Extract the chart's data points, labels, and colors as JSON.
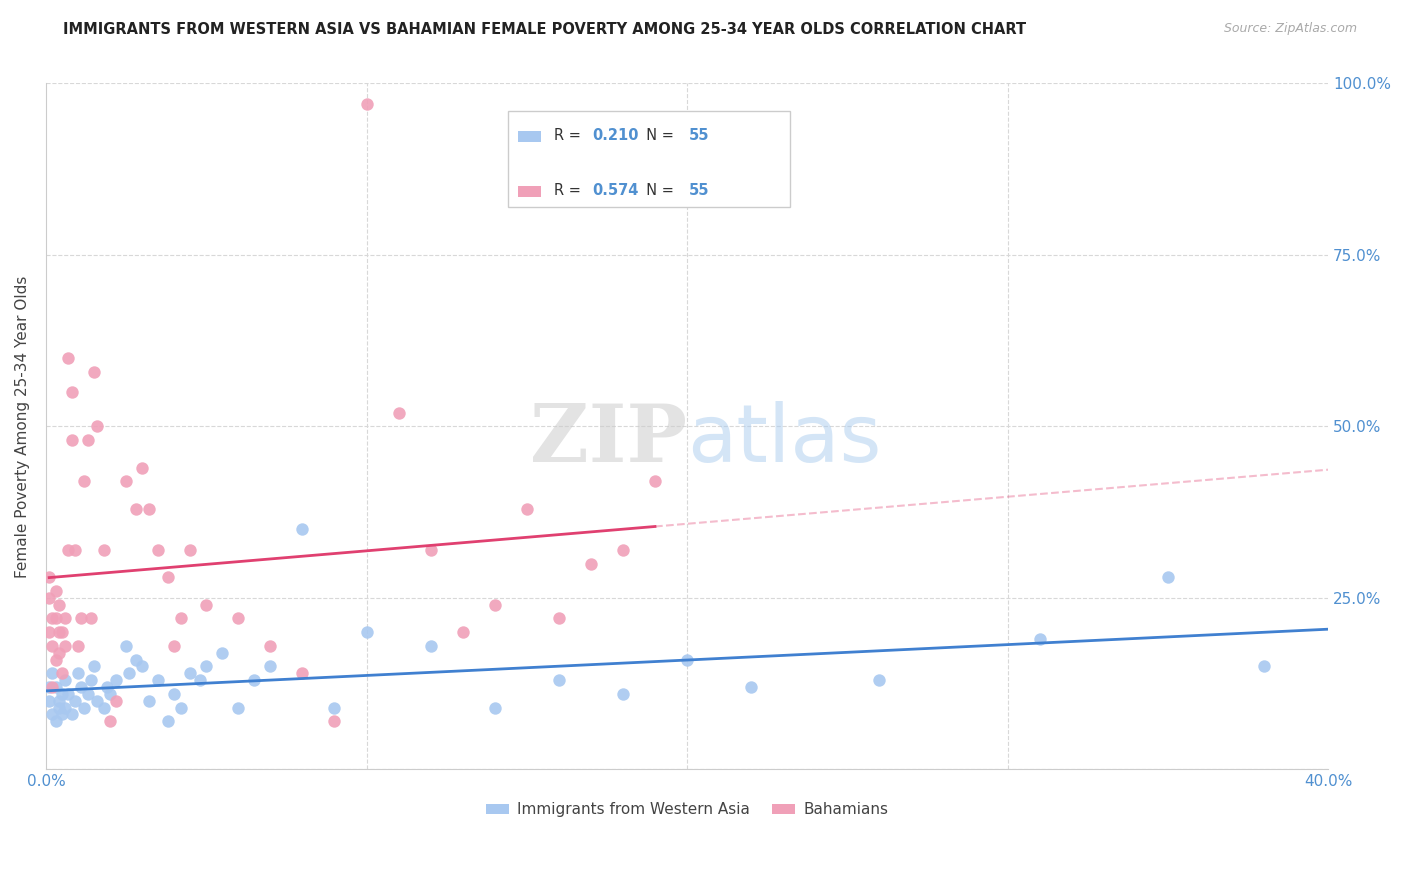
{
  "title": "IMMIGRANTS FROM WESTERN ASIA VS BAHAMIAN FEMALE POVERTY AMONG 25-34 YEAR OLDS CORRELATION CHART",
  "source": "Source: ZipAtlas.com",
  "ylabel": "Female Poverty Among 25-34 Year Olds",
  "xlim": [
    0.0,
    0.4
  ],
  "ylim": [
    0.0,
    1.0
  ],
  "blue_color": "#a8c8f0",
  "pink_color": "#f0a0b8",
  "blue_line_color": "#4080d0",
  "pink_line_color": "#e04070",
  "grid_color": "#d8d8d8",
  "legend_r_blue": "0.210",
  "legend_n_blue": "55",
  "legend_r_pink": "0.574",
  "legend_n_pink": "55",
  "legend_label_blue": "Immigrants from Western Asia",
  "legend_label_pink": "Bahamians",
  "blue_x": [
    0.001,
    0.001,
    0.002,
    0.002,
    0.003,
    0.003,
    0.004,
    0.004,
    0.005,
    0.005,
    0.006,
    0.006,
    0.007,
    0.008,
    0.009,
    0.01,
    0.011,
    0.012,
    0.013,
    0.014,
    0.015,
    0.016,
    0.018,
    0.019,
    0.02,
    0.022,
    0.025,
    0.026,
    0.028,
    0.03,
    0.032,
    0.035,
    0.038,
    0.04,
    0.042,
    0.045,
    0.048,
    0.05,
    0.055,
    0.06,
    0.065,
    0.07,
    0.08,
    0.09,
    0.1,
    0.12,
    0.14,
    0.16,
    0.18,
    0.2,
    0.22,
    0.26,
    0.31,
    0.35,
    0.38
  ],
  "blue_y": [
    0.1,
    0.12,
    0.08,
    0.14,
    0.07,
    0.12,
    0.1,
    0.09,
    0.11,
    0.08,
    0.09,
    0.13,
    0.11,
    0.08,
    0.1,
    0.14,
    0.12,
    0.09,
    0.11,
    0.13,
    0.15,
    0.1,
    0.09,
    0.12,
    0.11,
    0.13,
    0.18,
    0.14,
    0.16,
    0.15,
    0.1,
    0.13,
    0.07,
    0.11,
    0.09,
    0.14,
    0.13,
    0.15,
    0.17,
    0.09,
    0.13,
    0.15,
    0.35,
    0.09,
    0.2,
    0.18,
    0.09,
    0.13,
    0.11,
    0.16,
    0.12,
    0.13,
    0.19,
    0.28,
    0.15
  ],
  "pink_x": [
    0.001,
    0.001,
    0.001,
    0.002,
    0.002,
    0.002,
    0.003,
    0.003,
    0.003,
    0.004,
    0.004,
    0.004,
    0.005,
    0.005,
    0.006,
    0.006,
    0.007,
    0.007,
    0.008,
    0.008,
    0.009,
    0.01,
    0.011,
    0.012,
    0.013,
    0.014,
    0.015,
    0.016,
    0.018,
    0.02,
    0.022,
    0.025,
    0.028,
    0.03,
    0.032,
    0.035,
    0.038,
    0.04,
    0.042,
    0.045,
    0.05,
    0.06,
    0.07,
    0.08,
    0.09,
    0.1,
    0.11,
    0.12,
    0.13,
    0.14,
    0.15,
    0.16,
    0.17,
    0.18,
    0.19
  ],
  "pink_y": [
    0.2,
    0.25,
    0.28,
    0.12,
    0.18,
    0.22,
    0.16,
    0.22,
    0.26,
    0.17,
    0.2,
    0.24,
    0.14,
    0.2,
    0.22,
    0.18,
    0.6,
    0.32,
    0.48,
    0.55,
    0.32,
    0.18,
    0.22,
    0.42,
    0.48,
    0.22,
    0.58,
    0.5,
    0.32,
    0.07,
    0.1,
    0.42,
    0.38,
    0.44,
    0.38,
    0.32,
    0.28,
    0.18,
    0.22,
    0.32,
    0.24,
    0.22,
    0.18,
    0.14,
    0.07,
    0.97,
    0.52,
    0.32,
    0.2,
    0.24,
    0.38,
    0.22,
    0.3,
    0.32,
    0.42
  ]
}
